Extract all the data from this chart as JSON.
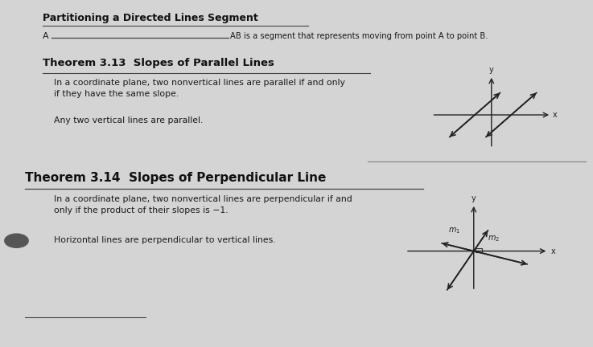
{
  "bg_color": "#d4d4d4",
  "title1": "Partitioning a Directed Lines Segment",
  "line1_a": "A",
  "line1_b": "AB is a segment that represents moving from point A to point B.",
  "thm313_title": "Theorem 3.13  Slopes of Parallel Lines",
  "thm313_body1": "In a coordinate plane, two nonvertical lines are parallel if and only\nif they have the same slope.",
  "thm313_body2": "Any two vertical lines are parallel.",
  "thm314_title": "Theorem 3.14  Slopes of Perpendicular Line",
  "thm314_body1": "In a coordinate plane, two nonvertical lines are perpendicular if and\nonly if the product of their slopes is −1.",
  "thm314_body2": "Horizontal lines are perpendicular to vertical lines.",
  "text_color": "#1a1a1a",
  "bold_color": "#111111",
  "underline_color": "#444444"
}
